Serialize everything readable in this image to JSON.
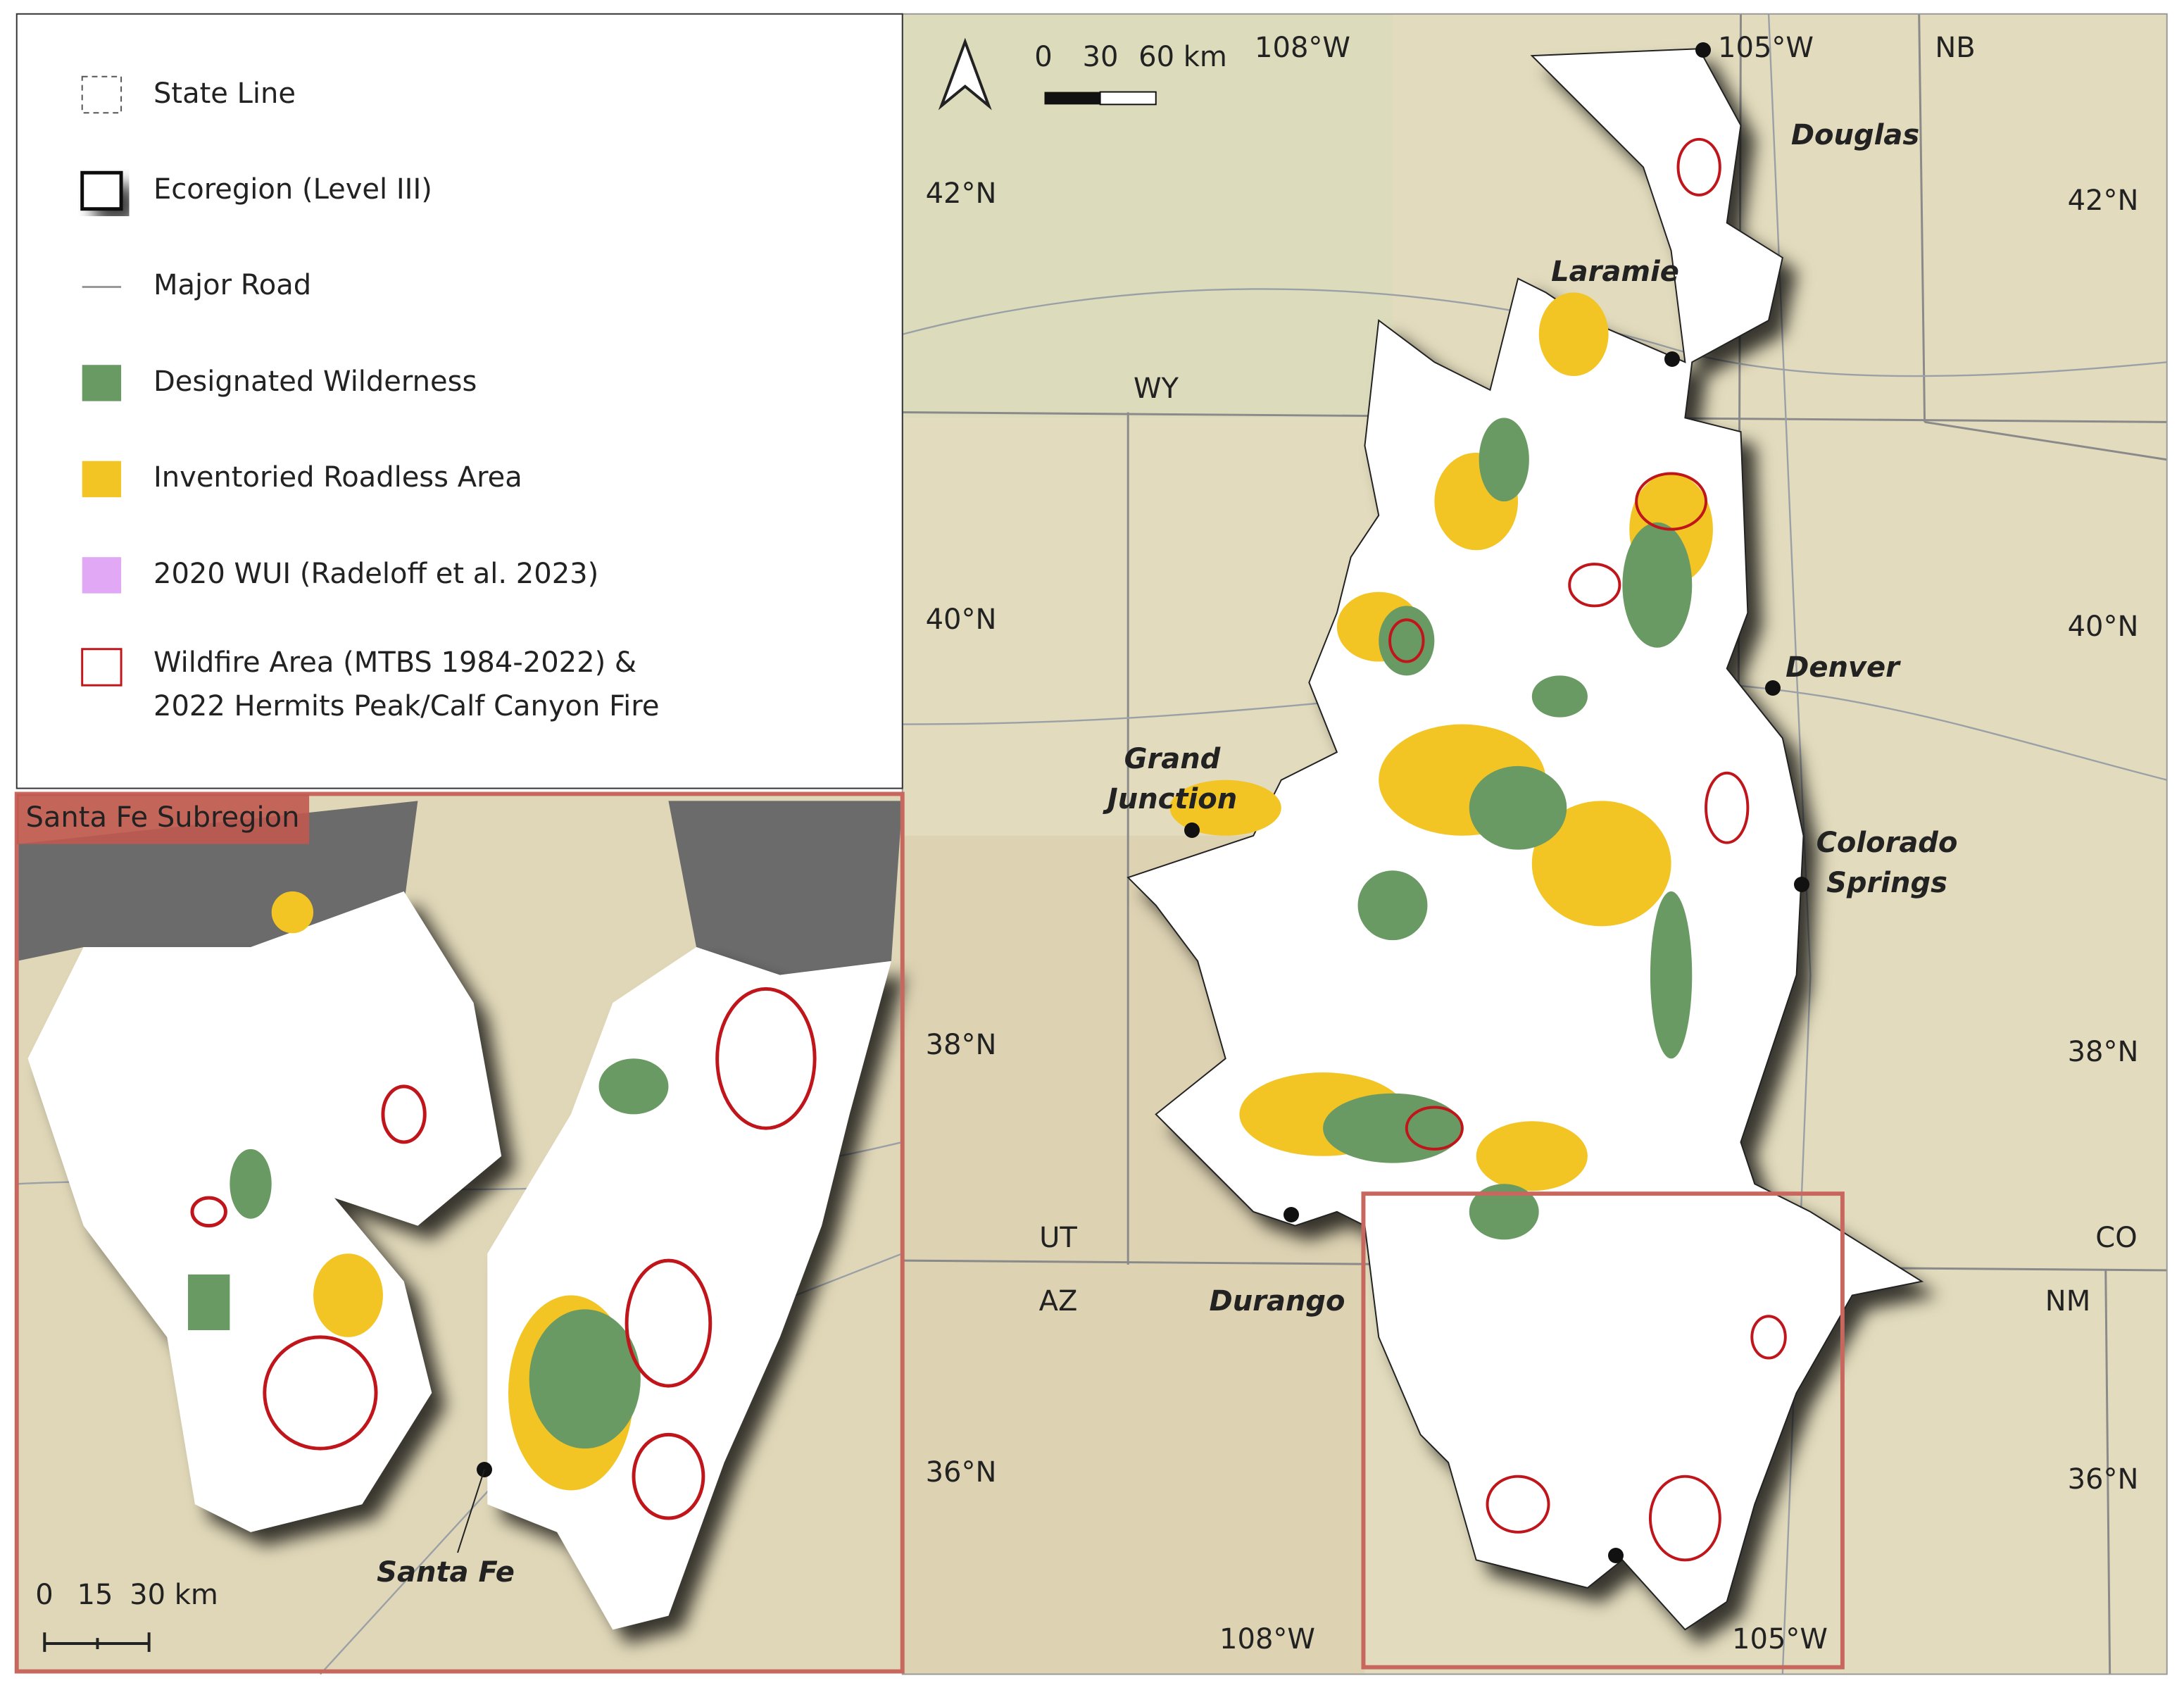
{
  "legend": {
    "items": [
      {
        "lines": [
          "State Line"
        ]
      },
      {
        "lines": [
          "Ecoregion (Level III)"
        ]
      },
      {
        "lines": [
          "Major Road"
        ]
      },
      {
        "lines": [
          "Designated Wilderness"
        ]
      },
      {
        "lines": [
          "Inventoried Roadless Area"
        ]
      },
      {
        "lines": [
          "2020 WUI (Radeloff et al. 2023)"
        ]
      },
      {
        "lines": [
          "Wildfire Area (MTBS 1984-2022) &",
          "2022 Hermits Peak/Calf Canyon Fire"
        ]
      }
    ]
  },
  "scale_bar": [
    "0",
    "30",
    "60 km"
  ],
  "graticule": {
    "longitude": [
      "108°W",
      "105°W"
    ],
    "latitude": [
      "42°N",
      "40°N",
      "38°N",
      "36°N"
    ]
  },
  "states": [
    "WY",
    "NB",
    "UT",
    "CO",
    "AZ",
    "NM"
  ],
  "cities": [
    {
      "lines": [
        "Douglas"
      ]
    },
    {
      "lines": [
        "Laramie"
      ]
    },
    {
      "lines": [
        "Denver"
      ]
    },
    {
      "lines": [
        "Grand",
        "Junction"
      ]
    },
    {
      "lines": [
        "Colorado",
        "Springs"
      ]
    },
    {
      "lines": [
        "Durango"
      ]
    }
  ],
  "inset": {
    "title": "Santa Fe Subregion",
    "scale_bar": [
      "0",
      "15",
      "30 km"
    ],
    "city": "Santa Fe"
  }
}
